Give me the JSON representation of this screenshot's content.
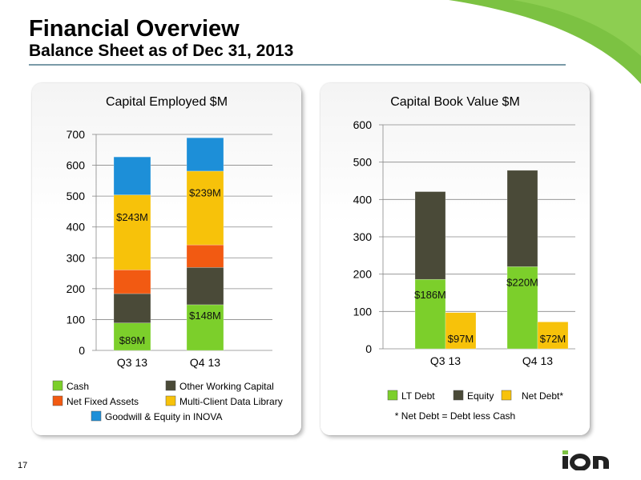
{
  "header": {
    "title": "Financial Overview",
    "subtitle": "Balance Sheet as of Dec 31, 2013"
  },
  "page_number": "17",
  "colors": {
    "cash": "#7ccf2b",
    "other_working_capital": "#4a4a38",
    "net_fixed_assets": "#f25a12",
    "multi_client": "#f7c20a",
    "goodwill": "#1d8fd8",
    "lt_debt": "#7ccf2b",
    "equity": "#4a4a38",
    "net_debt": "#f7c20a",
    "swoosh": "#7cc242"
  },
  "footnote": "* Net Debt = Debt less Cash",
  "chart_data": [
    {
      "type": "bar",
      "stacked": true,
      "title": "Capital Employed $M",
      "categories": [
        "Q3 13",
        "Q4 13"
      ],
      "ylim": [
        0,
        700
      ],
      "yticks": [
        "0",
        "100",
        "200",
        "300",
        "400",
        "500",
        "600",
        "700"
      ],
      "series": [
        {
          "name": "Cash",
          "values": [
            89,
            148
          ],
          "labels": [
            "$89M",
            "$148M"
          ]
        },
        {
          "name": "Other Working Capital",
          "values": [
            95,
            121
          ],
          "labels": [
            "",
            ""
          ]
        },
        {
          "name": "Net Fixed Assets",
          "values": [
            77,
            73
          ],
          "labels": [
            "",
            ""
          ]
        },
        {
          "name": "Multi-Client Data Library",
          "values": [
            243,
            239
          ],
          "labels": [
            "$243M",
            "$239M"
          ]
        },
        {
          "name": "Goodwill & Equity in INOVA",
          "values": [
            123,
            108
          ],
          "labels": [
            "",
            ""
          ]
        }
      ],
      "legend": [
        {
          "label": "Cash"
        },
        {
          "label": "Other Working Capital"
        },
        {
          "label": "Net Fixed Assets"
        },
        {
          "label": "Multi-Client Data Library"
        },
        {
          "label": "Goodwill & Equity in INOVA"
        }
      ]
    },
    {
      "type": "bar",
      "stacked": true,
      "title": "Capital Book Value $M",
      "categories": [
        "Q3 13",
        "Q4 13"
      ],
      "ylim": [
        0,
        600
      ],
      "yticks": [
        "0",
        "100",
        "200",
        "300",
        "400",
        "500",
        "600"
      ],
      "series": [
        {
          "name": "LT Debt",
          "values": [
            186,
            220
          ],
          "labels": [
            "$186M",
            "$220M"
          ]
        },
        {
          "name": "Equity",
          "values": [
            235,
            258
          ],
          "labels": [
            "",
            ""
          ]
        },
        {
          "name": "Net Debt*",
          "values": [
            97,
            72
          ],
          "labels": [
            "$97M",
            "$72M"
          ]
        }
      ],
      "legend": [
        {
          "label": "LT Debt"
        },
        {
          "label": "Equity"
        },
        {
          "label": "Net Debt*"
        }
      ]
    }
  ]
}
